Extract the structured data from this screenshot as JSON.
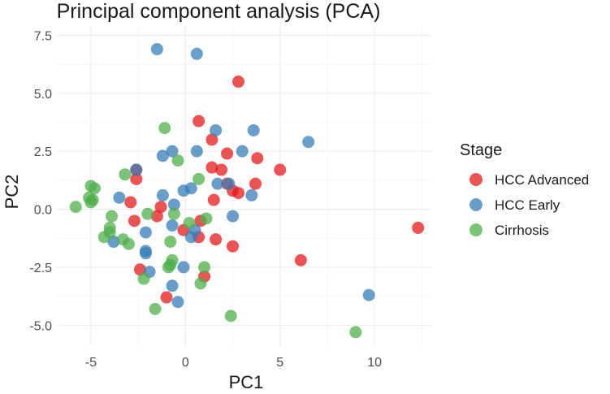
{
  "chart_data": {
    "type": "scatter",
    "title": "Principal component analysis (PCA)",
    "xlabel": "PC1",
    "ylabel": "PC2",
    "xlim": [
      -6.8,
      13.0
    ],
    "ylim": [
      -5.9,
      7.9
    ],
    "xticks": [
      -5,
      0,
      5,
      10
    ],
    "xtick_labels": [
      "-5",
      "0",
      "5",
      "10"
    ],
    "yticks": [
      -5,
      -2.5,
      0,
      2.5,
      5,
      7.5
    ],
    "ytick_labels": [
      "-5.0",
      "-2.5",
      "0.0",
      "2.5",
      "5.0",
      "7.5"
    ],
    "grid": true,
    "legend_title": "Stage",
    "legend_position": "right",
    "series": [
      {
        "name": "HCC Advanced",
        "color": "#E41A1C",
        "points": [
          [
            2.8,
            5.5
          ],
          [
            0.7,
            3.8
          ],
          [
            1.4,
            3.0
          ],
          [
            2.2,
            2.4
          ],
          [
            3.8,
            2.2
          ],
          [
            5.0,
            1.7
          ],
          [
            1.4,
            1.8
          ],
          [
            1.9,
            1.7
          ],
          [
            2.2,
            1.1
          ],
          [
            2.5,
            0.8
          ],
          [
            2.8,
            0.7
          ],
          [
            3.7,
            1.1
          ],
          [
            1.5,
            0.4
          ],
          [
            -2.6,
            1.7
          ],
          [
            -2.6,
            1.3
          ],
          [
            -2.9,
            0.3
          ],
          [
            -1.3,
            0.1
          ],
          [
            -1.5,
            -0.3
          ],
          [
            -2.7,
            -0.5
          ],
          [
            0.8,
            -0.5
          ],
          [
            -0.1,
            -0.9
          ],
          [
            0.7,
            -1.2
          ],
          [
            1.6,
            -1.3
          ],
          [
            2.5,
            -1.6
          ],
          [
            6.1,
            -2.2
          ],
          [
            12.3,
            -0.8
          ],
          [
            -2.4,
            -2.6
          ],
          [
            1.0,
            -2.9
          ],
          [
            -1.0,
            -3.8
          ]
        ]
      },
      {
        "name": "HCC Early",
        "color": "#377EB8",
        "points": [
          [
            -1.5,
            6.9
          ],
          [
            0.6,
            6.7
          ],
          [
            1.6,
            3.4
          ],
          [
            3.6,
            3.4
          ],
          [
            6.5,
            2.9
          ],
          [
            3.0,
            2.5
          ],
          [
            0.6,
            2.5
          ],
          [
            -0.7,
            2.5
          ],
          [
            -1.2,
            2.3
          ],
          [
            -2.6,
            1.7
          ],
          [
            1.7,
            1.1
          ],
          [
            2.3,
            1.1
          ],
          [
            3.5,
            0.6
          ],
          [
            0.3,
            0.9
          ],
          [
            -0.1,
            0.8
          ],
          [
            -1.2,
            0.6
          ],
          [
            -3.5,
            0.5
          ],
          [
            -0.6,
            0.2
          ],
          [
            2.5,
            -0.3
          ],
          [
            -0.7,
            -0.7
          ],
          [
            0.5,
            -0.9
          ],
          [
            -2.1,
            -1.0
          ],
          [
            0.3,
            -1.2
          ],
          [
            -3.8,
            -1.4
          ],
          [
            -2.1,
            -1.8
          ],
          [
            -2.1,
            -1.9
          ],
          [
            -0.1,
            -2.5
          ],
          [
            -1.9,
            -2.7
          ],
          [
            -0.7,
            -3.3
          ],
          [
            -0.4,
            -4.0
          ],
          [
            9.7,
            -3.7
          ]
        ]
      },
      {
        "name": "Cirrhosis",
        "color": "#4DAF4A",
        "points": [
          [
            -1.1,
            3.5
          ],
          [
            -0.4,
            2.1
          ],
          [
            -3.2,
            1.5
          ],
          [
            0.7,
            1.3
          ],
          [
            -5.0,
            1.0
          ],
          [
            -4.8,
            0.9
          ],
          [
            -5.1,
            0.5
          ],
          [
            -5.0,
            0.3
          ],
          [
            -4.9,
            0.4
          ],
          [
            -5.8,
            0.1
          ],
          [
            -2.0,
            -0.2
          ],
          [
            -0.6,
            -0.2
          ],
          [
            -3.9,
            -0.3
          ],
          [
            1.1,
            -0.4
          ],
          [
            0.2,
            -0.6
          ],
          [
            -4.0,
            -0.8
          ],
          [
            -4.0,
            -1.0
          ],
          [
            -3.3,
            -1.3
          ],
          [
            -3.0,
            -1.5
          ],
          [
            -4.3,
            -1.2
          ],
          [
            -0.8,
            -1.4
          ],
          [
            -0.7,
            -2.2
          ],
          [
            -0.8,
            -2.4
          ],
          [
            -0.9,
            -2.5
          ],
          [
            1.0,
            -2.5
          ],
          [
            -2.2,
            -3.0
          ],
          [
            0.8,
            -3.2
          ],
          [
            -1.6,
            -4.3
          ],
          [
            2.4,
            -4.6
          ],
          [
            9.0,
            -5.3
          ]
        ]
      }
    ]
  }
}
